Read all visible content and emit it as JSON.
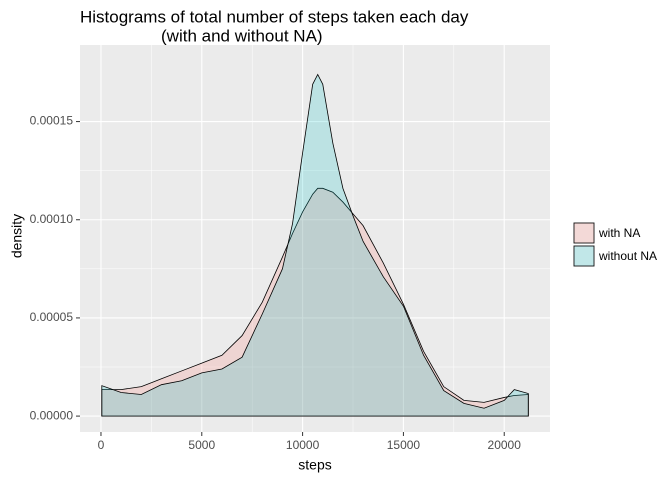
{
  "chart_data": {
    "type": "density",
    "title": [
      "Histograms of total number of steps taken each day",
      "(with and without NA)"
    ],
    "xlabel": "steps",
    "ylabel": "density",
    "x": [
      41,
      1000,
      2000,
      3000,
      4000,
      5000,
      6000,
      7000,
      8000,
      9000,
      9500,
      10000,
      10500,
      10750,
      11000,
      11500,
      12000,
      12500,
      13000,
      14000,
      15000,
      16000,
      17000,
      18000,
      19000,
      20000,
      20500,
      21194
    ],
    "series": [
      {
        "name": "with NA",
        "color": "#F8766D",
        "values": [
          1.35e-05,
          1.35e-05,
          1.5e-05,
          1.9e-05,
          2.3e-05,
          2.7e-05,
          3.1e-05,
          4.1e-05,
          5.8e-05,
          8.1e-05,
          9.3e-05,
          0.000104,
          0.000113,
          0.000116,
          0.000116,
          0.000114,
          0.000109,
          0.000103,
          9.7e-05,
          7.8e-05,
          5.7e-05,
          3.3e-05,
          1.5e-05,
          8e-06,
          7e-06,
          9.5e-06,
          1.05e-05,
          1.1e-05
        ]
      },
      {
        "name": "without NA",
        "color": "#00BFC4",
        "values": [
          1.55e-05,
          1.2e-05,
          1.1e-05,
          1.6e-05,
          1.8e-05,
          2.2e-05,
          2.4e-05,
          3e-05,
          5.2e-05,
          7.5e-05,
          9.8e-05,
          0.000134,
          0.000169,
          0.000174,
          0.000169,
          0.000139,
          0.000116,
          0.000102,
          8.9e-05,
          7.1e-05,
          5.6e-05,
          3.1e-05,
          1.3e-05,
          6.5e-06,
          4e-06,
          8e-06,
          1.35e-05,
          1.15e-05
        ]
      }
    ],
    "xlim": [
      -1040,
      22270
    ],
    "xticks": [
      0,
      5000,
      10000,
      15000,
      20000
    ],
    "ylim": [
      -8.1e-06,
      0.000189
    ],
    "yticks": [
      {
        "value": 0,
        "label": "0.00000"
      },
      {
        "value": 5e-05,
        "label": "0.00005"
      },
      {
        "value": 0.0001,
        "label": "0.00010"
      },
      {
        "value": 0.00015,
        "label": "0.00015"
      }
    ],
    "grid": true,
    "legend": "right"
  }
}
